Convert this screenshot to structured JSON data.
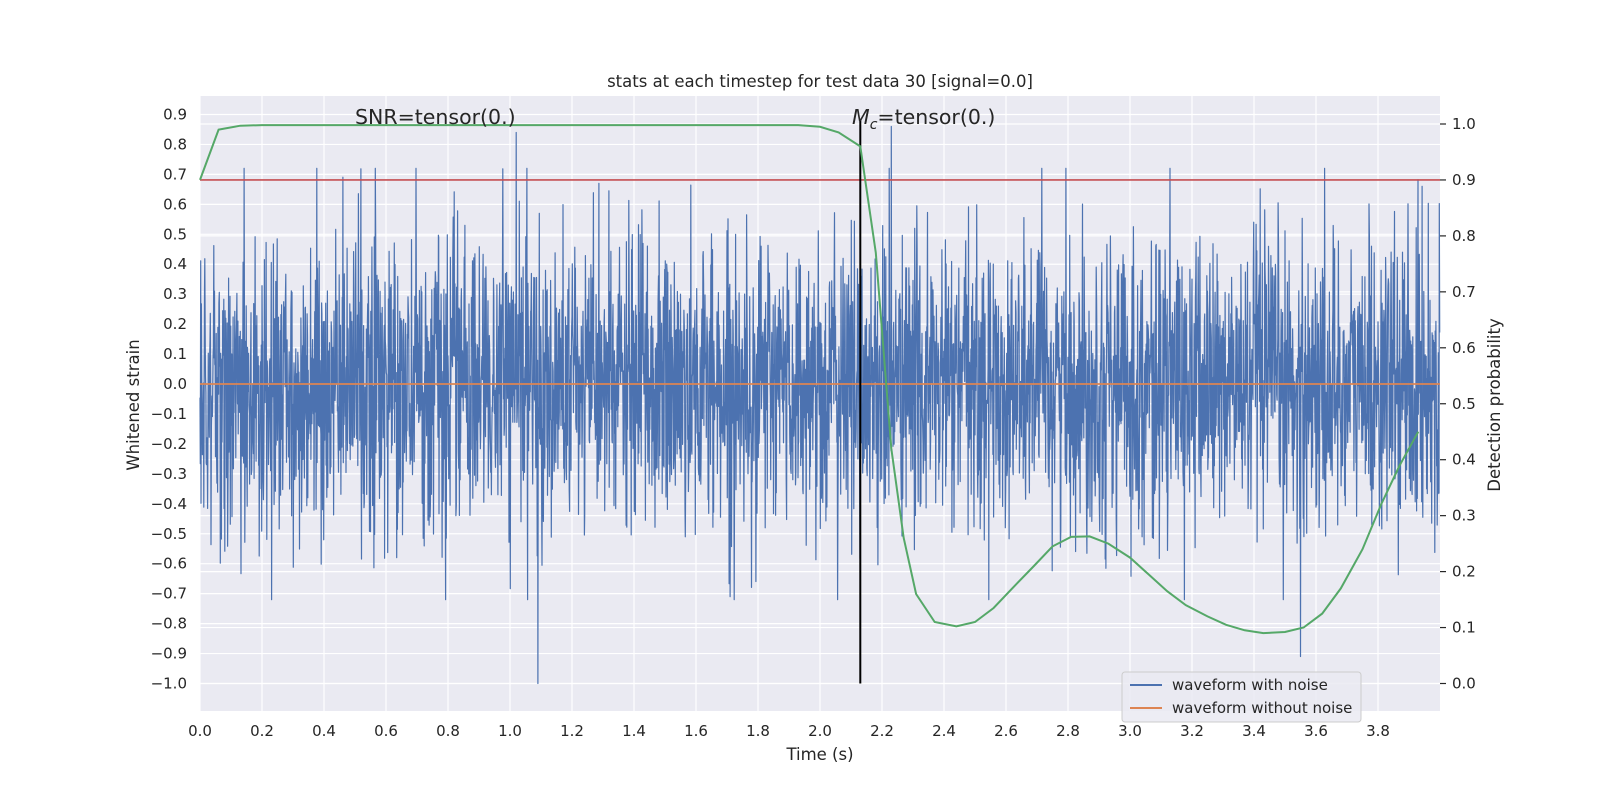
{
  "chart_data": {
    "type": "line",
    "title": "stats at each timestep for test data 30 [signal=0.0]",
    "xlabel": "Time (s)",
    "ylabel_left": "Whitened strain",
    "ylabel_right": "Detection probability",
    "xlim": [
      0.0,
      4.0
    ],
    "ylim_left": [
      -1.08,
      0.95
    ],
    "ylim_right": [
      -0.05,
      1.05
    ],
    "x_ticks": [
      "0.0",
      "0.2",
      "0.4",
      "0.6",
      "0.8",
      "1.0",
      "1.2",
      "1.4",
      "1.6",
      "1.8",
      "2.0",
      "2.2",
      "2.4",
      "2.6",
      "2.8",
      "3.0",
      "3.2",
      "3.4",
      "3.6",
      "3.8"
    ],
    "y_ticks_left": [
      "0.9",
      "0.8",
      "0.7",
      "0.6",
      "0.5",
      "0.4",
      "0.3",
      "0.2",
      "0.1",
      "0.0",
      "−0.1",
      "−0.2",
      "−0.3",
      "−0.4",
      "−0.5",
      "−0.6",
      "−0.7",
      "−0.8",
      "−0.9",
      "−1.0"
    ],
    "y_ticks_right": [
      "1.0",
      "0.9",
      "0.8",
      "0.7",
      "0.6",
      "0.5",
      "0.4",
      "0.3",
      "0.2",
      "0.1",
      "0.0"
    ],
    "grid": true,
    "background": "#eaeaf2",
    "legend_position": "lower-right",
    "annotations": [
      {
        "prefix": "SNR=tensor(0.)",
        "x": 1.0,
        "y": 0.88
      },
      {
        "symbol": "M",
        "subscript": "c",
        "suffix": "=tensor(0.)",
        "x": 2.35,
        "y": 0.88
      }
    ],
    "series": [
      {
        "name": "waveform with noise",
        "axis": "left",
        "color": "#4c72b0",
        "description": "whitened strain noise samples, roughly -0.7..0.7 with spikes up to 0.86 and down to -1.0",
        "extremes": [
          {
            "x": 1.02,
            "y": 0.84
          },
          {
            "x": 2.23,
            "y": 0.86
          },
          {
            "x": 1.09,
            "y": -1.0
          },
          {
            "x": 3.55,
            "y": -0.91
          }
        ]
      },
      {
        "name": "waveform without noise",
        "axis": "left",
        "color": "#dd8452",
        "x": [
          0.0,
          4.0
        ],
        "y": [
          0.0,
          0.0
        ]
      },
      {
        "axis": "right",
        "color": "#55a868",
        "x": [
          0.0,
          0.06,
          0.13,
          0.2,
          0.4,
          0.6,
          0.8,
          1.0,
          1.2,
          1.4,
          1.6,
          1.8,
          1.93,
          2.0,
          2.06,
          2.13,
          2.18,
          2.23,
          2.27,
          2.31,
          2.37,
          2.44,
          2.5,
          2.56,
          2.62,
          2.69,
          2.75,
          2.81,
          2.87,
          2.93,
          3.0,
          3.06,
          3.12,
          3.18,
          3.25,
          3.31,
          3.37,
          3.43,
          3.5,
          3.56,
          3.62,
          3.68,
          3.75,
          3.81,
          3.87,
          3.93
        ],
        "y": [
          0.9,
          0.99,
          0.997,
          0.998,
          0.998,
          0.998,
          0.998,
          0.998,
          0.998,
          0.998,
          0.998,
          0.998,
          0.998,
          0.995,
          0.985,
          0.96,
          0.77,
          0.42,
          0.26,
          0.16,
          0.11,
          0.102,
          0.11,
          0.135,
          0.17,
          0.21,
          0.245,
          0.262,
          0.263,
          0.25,
          0.225,
          0.195,
          0.165,
          0.14,
          0.12,
          0.105,
          0.095,
          0.09,
          0.092,
          0.1,
          0.125,
          0.17,
          0.24,
          0.32,
          0.39,
          0.45
        ]
      },
      {
        "axis": "right",
        "color": "#c44e52",
        "x": [
          0.0,
          4.0
        ],
        "y": [
          0.9,
          0.9
        ]
      },
      {
        "axis": "left",
        "color": "#000000",
        "type": "vline",
        "x": 2.13,
        "y_range": [
          -1.0,
          0.88
        ]
      }
    ]
  }
}
